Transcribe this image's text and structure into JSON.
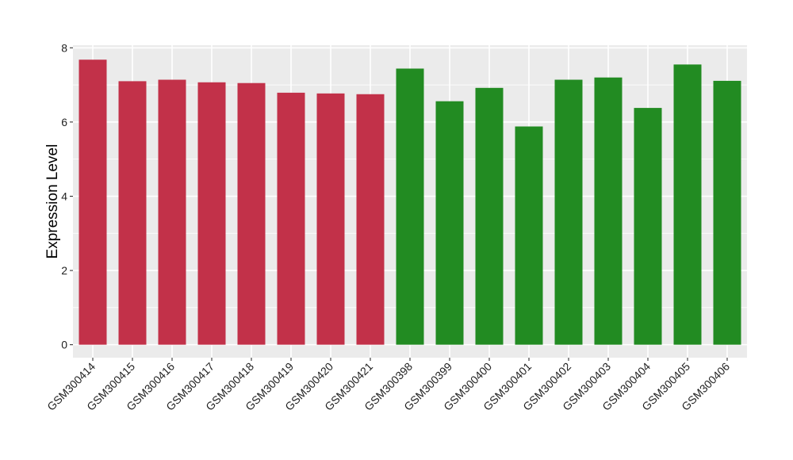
{
  "chart_data": {
    "type": "bar",
    "title": "",
    "xlabel": "",
    "ylabel": "Expression Level",
    "ylim": [
      -0.35,
      8.07
    ],
    "yticks": [
      0,
      2,
      4,
      6,
      8
    ],
    "grid": true,
    "legend": "none",
    "categories": [
      "GSM300414",
      "GSM300415",
      "GSM300416",
      "GSM300417",
      "GSM300418",
      "GSM300419",
      "GSM300420",
      "GSM300421",
      "GSM300398",
      "GSM300399",
      "GSM300400",
      "GSM300401",
      "GSM300402",
      "GSM300403",
      "GSM300404",
      "GSM300405",
      "GSM300406"
    ],
    "values": [
      7.68,
      7.1,
      7.14,
      7.07,
      7.05,
      6.79,
      6.77,
      6.75,
      7.44,
      6.56,
      6.92,
      5.88,
      7.14,
      7.2,
      6.38,
      7.55,
      7.11
    ],
    "colors": [
      "#c23149",
      "#c23149",
      "#c23149",
      "#c23149",
      "#c23149",
      "#c23149",
      "#c23149",
      "#c23149",
      "#228b22",
      "#228b22",
      "#228b22",
      "#228b22",
      "#228b22",
      "#228b22",
      "#228b22",
      "#228b22",
      "#228b22"
    ],
    "panel_background": "#ebebeb",
    "gridline_color": "#ffffff"
  }
}
